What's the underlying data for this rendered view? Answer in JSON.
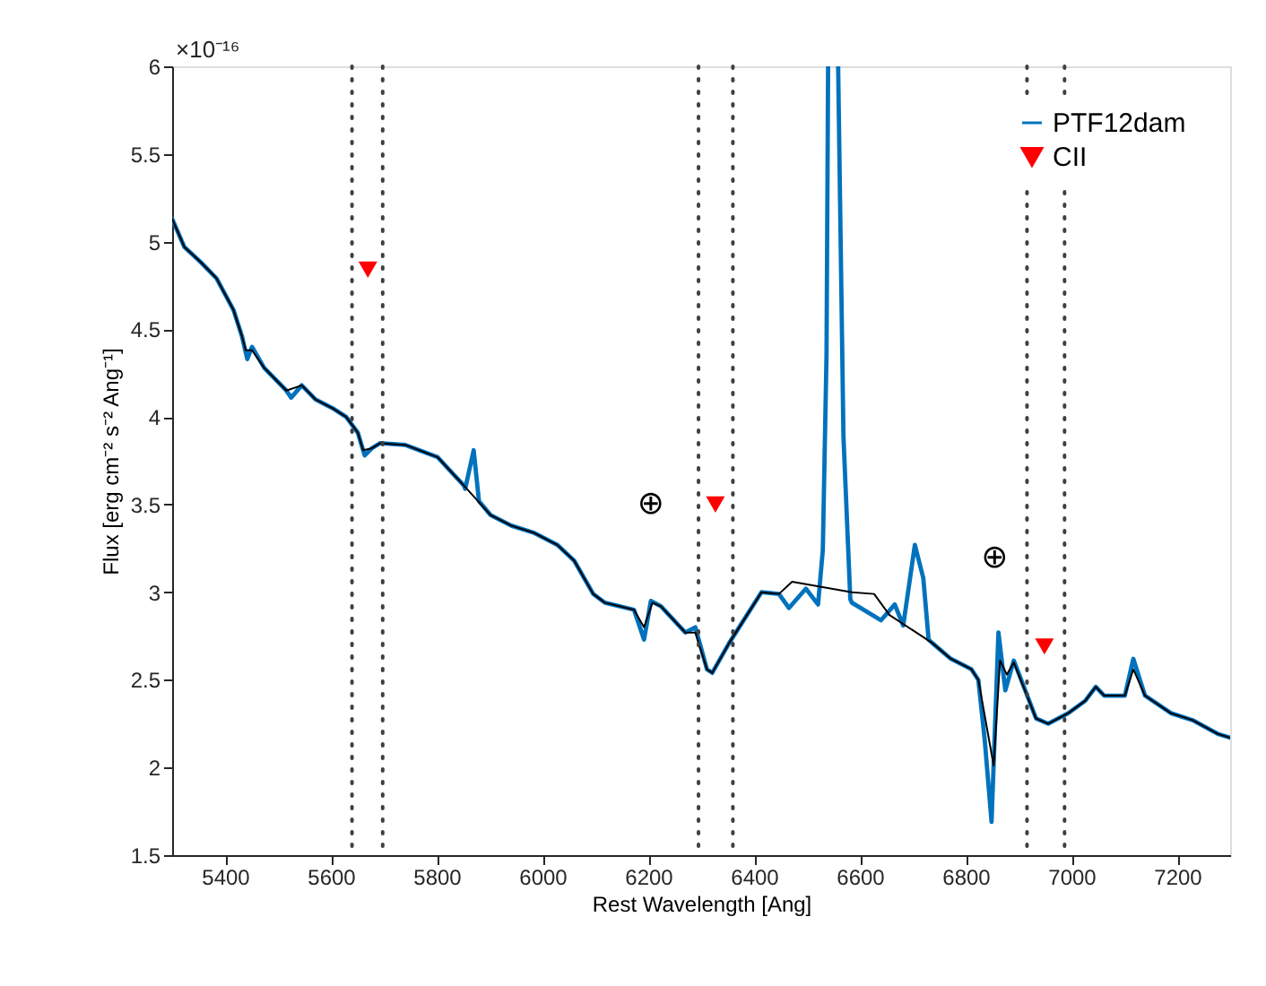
{
  "chart_data": {
    "type": "line",
    "xlabel": "Rest Wavelength [Ang]",
    "ylabel": "Flux [erg cm⁻² s⁻² Ang⁻¹]",
    "xlim": [
      5300,
      7300
    ],
    "xticks": [
      5400,
      5600,
      5800,
      6000,
      6200,
      6400,
      6600,
      6800,
      7000,
      7200
    ],
    "ylim": [
      1.5,
      6
    ],
    "yticks": [
      1.5,
      2,
      2.5,
      3,
      3.5,
      4,
      4.5,
      5,
      5.5,
      6
    ],
    "grid": false,
    "legend": "top right",
    "line_style": "solid",
    "series": [
      {
        "name": "PTF12dam",
        "color": "#0072bd",
        "marker": "none",
        "x": [
          5300,
          5323,
          5355,
          5384,
          5416,
          5432,
          5442,
          5451,
          5474,
          5516,
          5525,
          5545,
          5571,
          5603,
          5629,
          5651,
          5664,
          5677,
          5693,
          5741,
          5802,
          5851,
          5854,
          5870,
          5880,
          5902,
          5941,
          5983,
          6028,
          6060,
          6096,
          6118,
          6173,
          6192,
          6205,
          6224,
          6270,
          6289,
          6311,
          6321,
          6353,
          6414,
          6447,
          6466,
          6498,
          6521,
          6530,
          6537,
          6540,
          6550,
          6559,
          6569,
          6582,
          6585,
          6640,
          6666,
          6682,
          6704,
          6720,
          6730,
          6737,
          6772,
          6811,
          6824,
          6836,
          6849,
          6862,
          6875,
          6891,
          6933,
          6956,
          6994,
          7026,
          7046,
          7062,
          7101,
          7117,
          7139,
          7188,
          7229,
          7278,
          7300
        ],
        "values": [
          5.13,
          4.97,
          4.88,
          4.79,
          4.61,
          4.46,
          4.33,
          4.4,
          4.28,
          4.15,
          4.11,
          4.18,
          4.1,
          4.05,
          4.0,
          3.91,
          3.78,
          3.82,
          3.85,
          3.84,
          3.77,
          3.61,
          3.59,
          3.81,
          3.52,
          3.44,
          3.38,
          3.34,
          3.27,
          3.18,
          2.99,
          2.94,
          2.9,
          2.73,
          2.95,
          2.92,
          2.77,
          2.8,
          2.56,
          2.54,
          2.71,
          3.0,
          2.99,
          2.91,
          3.02,
          2.93,
          3.24,
          4.35,
          6.0,
          null,
          6.0,
          3.89,
          2.96,
          2.94,
          2.84,
          2.93,
          2.81,
          3.27,
          3.08,
          2.73,
          2.71,
          2.62,
          2.56,
          2.5,
          2.16,
          1.69,
          2.77,
          2.44,
          2.61,
          2.28,
          2.25,
          2.31,
          2.38,
          2.46,
          2.41,
          2.41,
          2.62,
          2.41,
          2.31,
          2.27,
          2.19,
          2.17
        ]
      },
      {
        "color": "#000000",
        "marker": "none",
        "x": [
          5300,
          5323,
          5355,
          5384,
          5416,
          5432,
          5439,
          5451,
          5474,
          5516,
          5545,
          5571,
          5603,
          5629,
          5651,
          5661,
          5677,
          5693,
          5741,
          5802,
          5851,
          5902,
          5941,
          5983,
          6028,
          6060,
          6096,
          6118,
          6173,
          6192,
          6208,
          6224,
          6270,
          6289,
          6311,
          6321,
          6353,
          6414,
          6447,
          6472,
          6585,
          6627,
          6656,
          6737,
          6772,
          6811,
          6824,
          6853,
          6865,
          6878,
          6891,
          6933,
          6956,
          6994,
          7026,
          7046,
          7062,
          7101,
          7117,
          7139,
          7188,
          7229,
          7278,
          7300
        ],
        "values": [
          5.13,
          4.97,
          4.88,
          4.79,
          4.61,
          4.46,
          4.38,
          4.38,
          4.28,
          4.15,
          4.18,
          4.1,
          4.05,
          4.0,
          3.91,
          3.81,
          3.82,
          3.85,
          3.84,
          3.77,
          3.61,
          3.44,
          3.38,
          3.34,
          3.27,
          3.18,
          2.99,
          2.94,
          2.9,
          2.8,
          2.94,
          2.92,
          2.77,
          2.77,
          2.56,
          2.54,
          2.71,
          3.0,
          2.99,
          3.06,
          3.0,
          2.99,
          2.87,
          2.71,
          2.62,
          2.56,
          2.5,
          2.01,
          2.61,
          2.53,
          2.6,
          2.28,
          2.25,
          2.31,
          2.38,
          2.46,
          2.41,
          2.41,
          2.56,
          2.41,
          2.31,
          2.27,
          2.19,
          2.17
        ]
      },
      {
        "name": "CII",
        "color": "#ff0000",
        "type": "scatter",
        "marker": "triangle",
        "x": [
          5670,
          6327,
          6949
        ],
        "values": [
          4.84,
          3.5,
          2.69
        ]
      }
    ],
    "ref_lines": [
      {
        "axis": "x",
        "value": 5640,
        "color": "#404040",
        "line_style": "dotted"
      },
      {
        "axis": "x",
        "value": 5698,
        "color": "#404040",
        "line_style": "dotted"
      },
      {
        "axis": "x",
        "value": 6295,
        "color": "#404040",
        "line_style": "dotted"
      },
      {
        "axis": "x",
        "value": 6360,
        "color": "#404040",
        "line_style": "dotted"
      },
      {
        "axis": "x",
        "value": 6916,
        "color": "#404040",
        "line_style": "dotted"
      },
      {
        "axis": "x",
        "value": 6987,
        "color": "#404040",
        "line_style": "dotted"
      }
    ],
    "annotations": [
      "×10⁻¹⁶",
      "⊕",
      "⊕"
    ]
  }
}
